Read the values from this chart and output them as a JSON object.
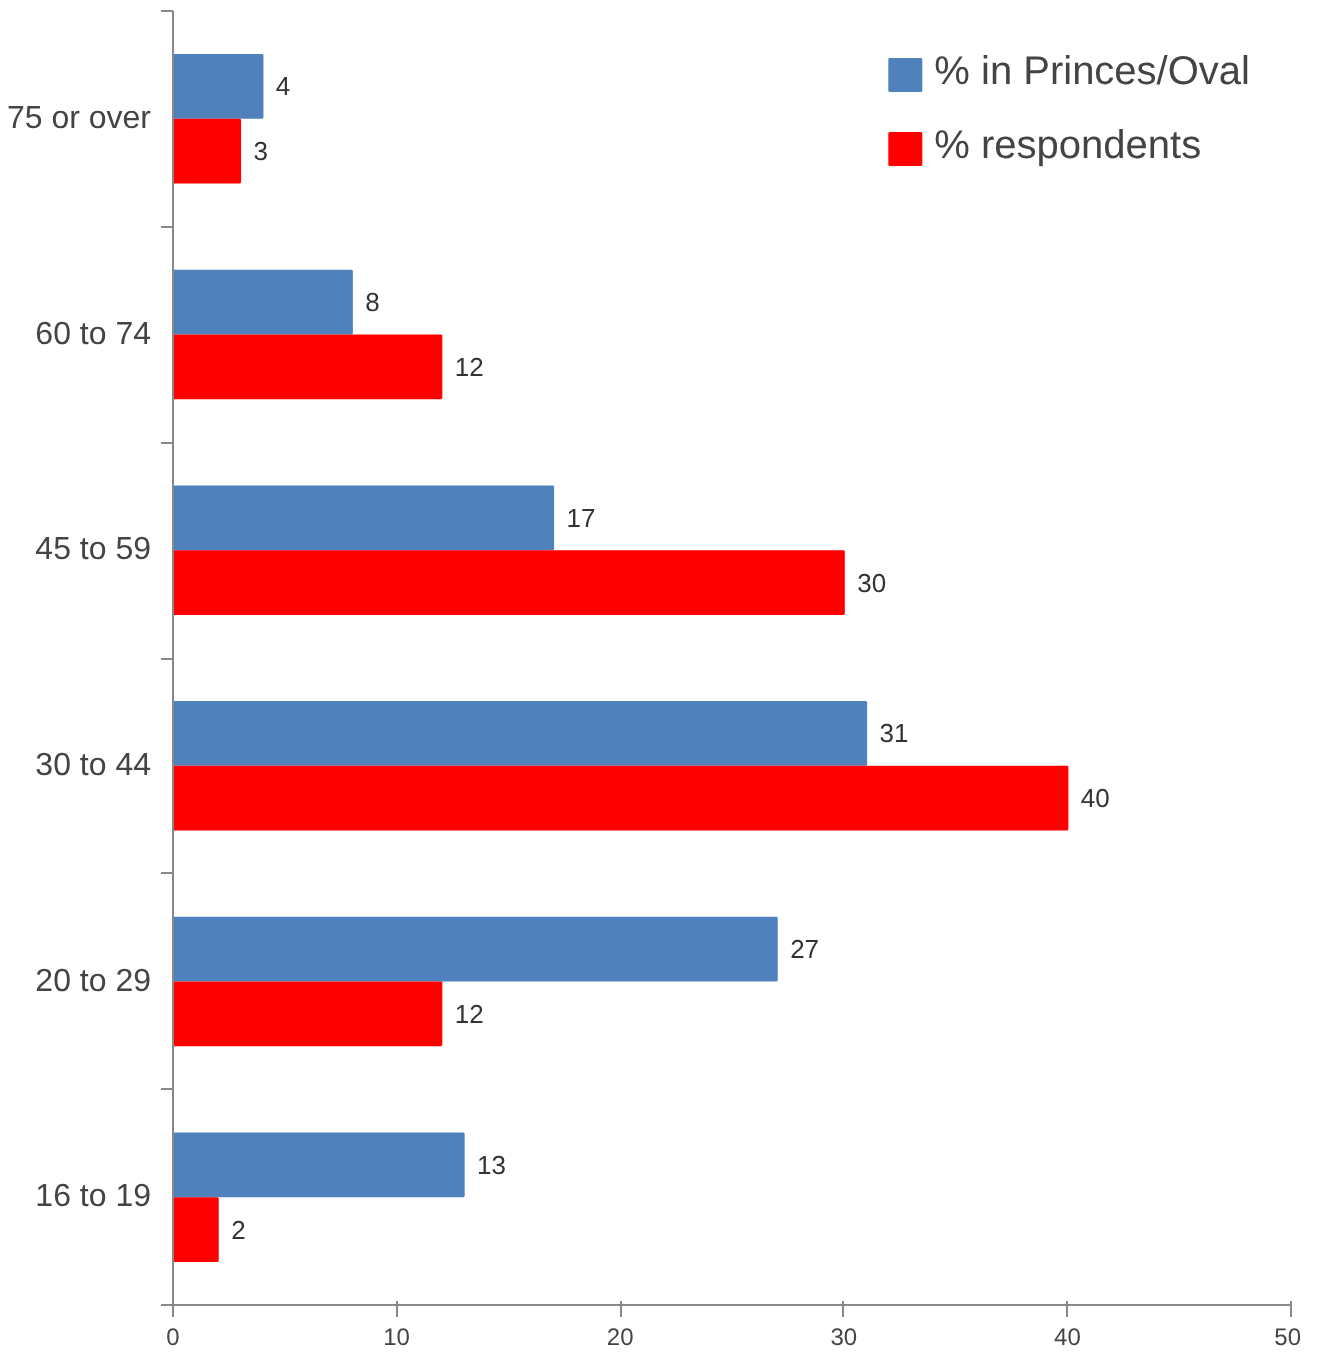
{
  "chart_data": {
    "type": "bar",
    "orientation": "horizontal",
    "categories": [
      "75 or over",
      "60 to 74",
      "45 to 59",
      "30 to 44",
      "20 to 29",
      "16 to 19"
    ],
    "series": [
      {
        "name": "% in Princes/Oval",
        "color": "#4f81bd",
        "values": [
          4,
          8,
          17,
          31,
          27,
          13
        ]
      },
      {
        "name": "% respondents",
        "color": "#ff0000",
        "values": [
          3,
          12,
          30,
          40,
          12,
          2
        ]
      }
    ],
    "xlim": [
      0,
      50
    ],
    "xticks": [
      0,
      10,
      20,
      30,
      40,
      50
    ],
    "data_labels": true,
    "legend": "top right",
    "grid": false
  }
}
